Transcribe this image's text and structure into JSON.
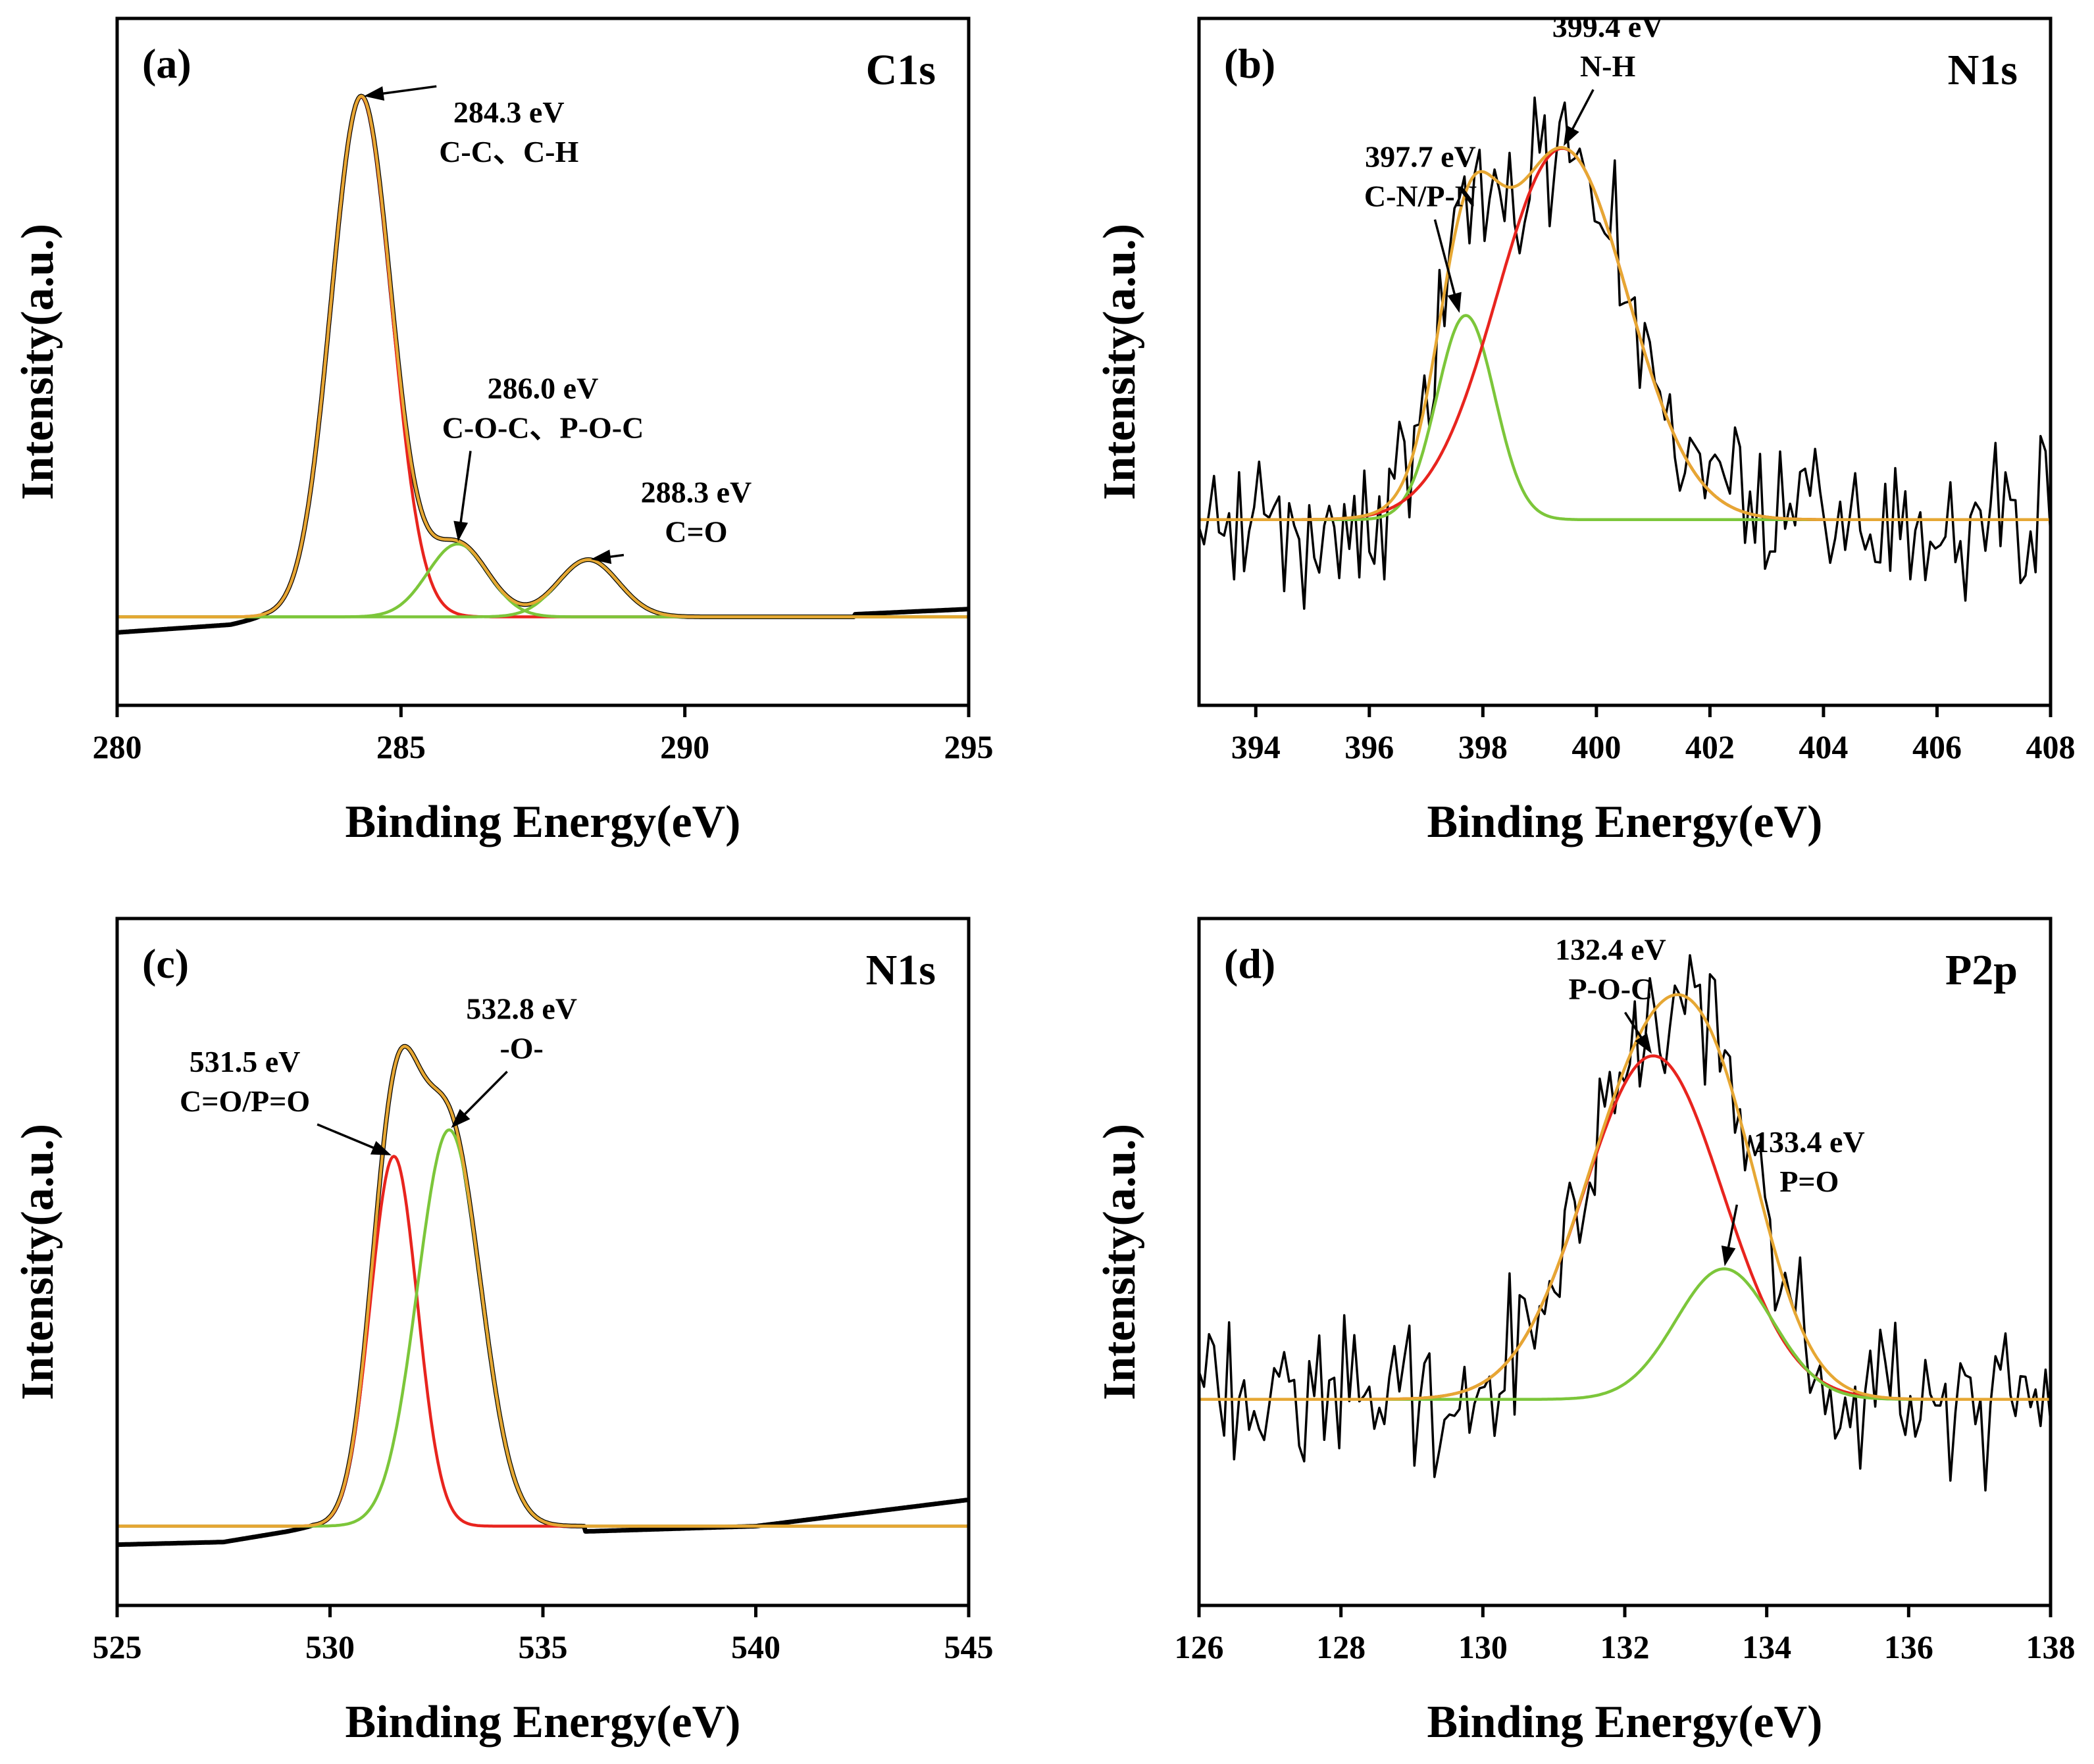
{
  "figure": {
    "panels": [
      {
        "id": "a",
        "panel_label": "(a)",
        "spectrum": "C1s"
      },
      {
        "id": "b",
        "panel_label": "(b)",
        "spectrum": "N1s"
      },
      {
        "id": "c",
        "panel_label": "(c)",
        "spectrum": "N1s"
      },
      {
        "id": "d",
        "panel_label": "(d)",
        "spectrum": "P2p"
      }
    ]
  },
  "colors": {
    "raw": "#000000",
    "envelope": "#e6a733",
    "peak_red": "#e8241e",
    "peak_green": "#7cc63a",
    "background_blue": "#2b4fb7"
  },
  "chart_data": [
    {
      "type": "line",
      "title": "C1s",
      "panel_label": "(a)",
      "xlabel": "Binding Energy(eV)",
      "ylabel": "Intensity(a.u.)",
      "xlim": [
        280,
        295
      ],
      "ylim": [
        -0.17,
        1.15
      ],
      "xticks": [
        280,
        285,
        290,
        295
      ],
      "baseline": 0,
      "noise": 0,
      "raw_tail": [
        [
          280,
          -0.03
        ],
        [
          282,
          -0.015
        ],
        [
          282.6,
          0
        ]
      ],
      "raw_tail_right": [
        [
          293,
          0.005
        ],
        [
          295,
          0.015
        ]
      ],
      "components": [
        {
          "center": 284.3,
          "height": 1.0,
          "fwhm": 1.25,
          "color": "peak_red"
        },
        {
          "center": 286.0,
          "height": 0.14,
          "fwhm": 1.25,
          "color": "peak_green"
        },
        {
          "center": 288.3,
          "height": 0.11,
          "fwhm": 1.25,
          "color": "peak_green"
        }
      ],
      "background_line": {
        "from": 282.2,
        "to": 288.0,
        "color": "background_blue"
      },
      "annotations": [
        {
          "lines": [
            "284.3 eV",
            "C-C、C-H"
          ],
          "x": 284.3,
          "y": 1.0,
          "text_x": 286.9,
          "text_y": 0.95
        },
        {
          "lines": [
            "286.0 eV",
            "C-O-C、P-O-C"
          ],
          "x": 286.0,
          "y": 0.14,
          "text_x": 287.5,
          "text_y": 0.42
        },
        {
          "lines": [
            "288.3 eV",
            "C=O"
          ],
          "x": 288.3,
          "y": 0.11,
          "text_x": 290.2,
          "text_y": 0.22
        }
      ]
    },
    {
      "type": "line",
      "title": "N1s",
      "panel_label": "(b)",
      "xlabel": "Binding Energy(eV)",
      "ylabel": "Intensity(a.u.)",
      "xlim": [
        393,
        408
      ],
      "ylim": [
        -0.5,
        1.35
      ],
      "xticks": [
        394,
        396,
        398,
        400,
        402,
        404,
        406,
        408
      ],
      "baseline": 0,
      "noise": 0.17,
      "components": [
        {
          "center": 397.7,
          "height": 0.55,
          "fwhm": 1.2,
          "color": "peak_green"
        },
        {
          "center": 399.4,
          "height": 1.0,
          "fwhm": 2.7,
          "color": "peak_red"
        }
      ],
      "annotations": [
        {
          "lines": [
            "397.7 eV",
            "C-N/P-N"
          ],
          "x": 397.6,
          "y": 0.55,
          "text_x": 396.9,
          "text_y": 0.95
        },
        {
          "lines": [
            "399.4 eV",
            "N-H"
          ],
          "x": 399.4,
          "y": 1.0,
          "text_x": 400.2,
          "text_y": 1.3
        }
      ]
    },
    {
      "type": "line",
      "title": "N1s",
      "panel_label": "(c)",
      "xlabel": "Binding Energy(eV)",
      "ylabel": "Intensity(a.u.)",
      "xlim": [
        525,
        545
      ],
      "ylim": [
        -0.15,
        1.15
      ],
      "xticks": [
        525,
        530,
        535,
        540,
        545
      ],
      "baseline": 0,
      "noise": 0,
      "raw_tail": [
        [
          525,
          -0.035
        ],
        [
          527.5,
          -0.03
        ],
        [
          529,
          -0.01
        ],
        [
          529.6,
          0
        ]
      ],
      "raw_tail_right": [
        [
          536,
          -0.01
        ],
        [
          540,
          0.0
        ],
        [
          545,
          0.05
        ]
      ],
      "components": [
        {
          "center": 531.5,
          "height": 0.7,
          "fwhm": 1.3,
          "color": "peak_red"
        },
        {
          "center": 532.8,
          "height": 0.75,
          "fwhm": 1.75,
          "color": "peak_green"
        }
      ],
      "annotations": [
        {
          "lines": [
            "531.5 eV",
            "C=O/P=O"
          ],
          "x": 531.5,
          "y": 0.7,
          "text_x": 528.0,
          "text_y": 0.86
        },
        {
          "lines": [
            "532.8 eV",
            "-O-"
          ],
          "x": 532.8,
          "y": 0.75,
          "text_x": 534.5,
          "text_y": 0.96
        }
      ]
    },
    {
      "type": "line",
      "title": "P2p",
      "panel_label": "(d)",
      "xlabel": "Binding Energy(eV)",
      "ylabel": "Intensity(a.u.)",
      "xlim": [
        126,
        138
      ],
      "ylim": [
        -0.6,
        1.4
      ],
      "xticks": [
        126,
        128,
        130,
        132,
        134,
        136,
        138
      ],
      "baseline": 0,
      "noise": 0.17,
      "components": [
        {
          "center": 132.4,
          "height": 1.0,
          "fwhm": 2.3,
          "color": "peak_red"
        },
        {
          "center": 133.4,
          "height": 0.38,
          "fwhm": 1.6,
          "color": "peak_green"
        }
      ],
      "annotations": [
        {
          "lines": [
            "132.4 eV",
            "P-O-C"
          ],
          "x": 132.4,
          "y": 1.0,
          "text_x": 131.8,
          "text_y": 1.28
        },
        {
          "lines": [
            "133.4 eV",
            "P=O"
          ],
          "x": 133.4,
          "y": 0.38,
          "text_x": 134.6,
          "text_y": 0.72
        }
      ]
    }
  ]
}
